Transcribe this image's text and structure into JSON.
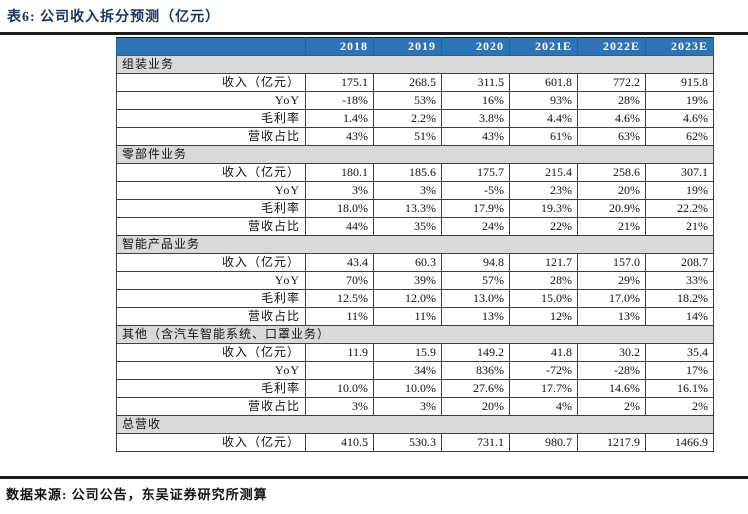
{
  "title": "表6:  公司收入拆分预测（亿元）",
  "footer": "数据来源: 公司公告，东吴证券研究所测算",
  "colors": {
    "title_color": "#17375E",
    "header_bg": "#2E74B5",
    "section_bg": "#D9D9D9",
    "rule_color": "#1a1a1a"
  },
  "table": {
    "columns": [
      "2018",
      "2019",
      "2020",
      "2021E",
      "2022E",
      "2023E"
    ],
    "sections": [
      {
        "name": "组装业务",
        "rows": [
          {
            "label": "收入（亿元）",
            "values": [
              "175.1",
              "268.5",
              "311.5",
              "601.8",
              "772.2",
              "915.8"
            ]
          },
          {
            "label": "YoY",
            "values": [
              "-18%",
              "53%",
              "16%",
              "93%",
              "28%",
              "19%"
            ]
          },
          {
            "label": "毛利率",
            "values": [
              "1.4%",
              "2.2%",
              "3.8%",
              "4.4%",
              "4.6%",
              "4.6%"
            ]
          },
          {
            "label": "营收占比",
            "values": [
              "43%",
              "51%",
              "43%",
              "61%",
              "63%",
              "62%"
            ]
          }
        ]
      },
      {
        "name": "零部件业务",
        "rows": [
          {
            "label": "收入（亿元）",
            "values": [
              "180.1",
              "185.6",
              "175.7",
              "215.4",
              "258.6",
              "307.1"
            ]
          },
          {
            "label": "YoY",
            "values": [
              "3%",
              "3%",
              "-5%",
              "23%",
              "20%",
              "19%"
            ]
          },
          {
            "label": "毛利率",
            "values": [
              "18.0%",
              "13.3%",
              "17.9%",
              "19.3%",
              "20.9%",
              "22.2%"
            ]
          },
          {
            "label": "营收占比",
            "values": [
              "44%",
              "35%",
              "24%",
              "22%",
              "21%",
              "21%"
            ]
          }
        ]
      },
      {
        "name": "智能产品业务",
        "rows": [
          {
            "label": "收入（亿元）",
            "values": [
              "43.4",
              "60.3",
              "94.8",
              "121.7",
              "157.0",
              "208.7"
            ]
          },
          {
            "label": "YoY",
            "values": [
              "70%",
              "39%",
              "57%",
              "28%",
              "29%",
              "33%"
            ]
          },
          {
            "label": "毛利率",
            "values": [
              "12.5%",
              "12.0%",
              "13.0%",
              "15.0%",
              "17.0%",
              "18.2%"
            ]
          },
          {
            "label": "营收占比",
            "values": [
              "11%",
              "11%",
              "13%",
              "12%",
              "13%",
              "14%"
            ]
          }
        ]
      },
      {
        "name": "其他（含汽车智能系统、口罩业务）",
        "rows": [
          {
            "label": "收入（亿元）",
            "values": [
              "11.9",
              "15.9",
              "149.2",
              "41.8",
              "30.2",
              "35.4"
            ]
          },
          {
            "label": "YoY",
            "values": [
              "",
              "34%",
              "836%",
              "-72%",
              "-28%",
              "17%"
            ]
          },
          {
            "label": "毛利率",
            "values": [
              "10.0%",
              "10.0%",
              "27.6%",
              "17.7%",
              "14.6%",
              "16.1%"
            ]
          },
          {
            "label": "营收占比",
            "values": [
              "3%",
              "3%",
              "20%",
              "4%",
              "2%",
              "2%"
            ]
          }
        ]
      },
      {
        "name": "总营收",
        "rows": [
          {
            "label": "收入（亿元）",
            "values": [
              "410.5",
              "530.3",
              "731.1",
              "980.7",
              "1217.9",
              "1466.9"
            ]
          }
        ]
      }
    ]
  }
}
